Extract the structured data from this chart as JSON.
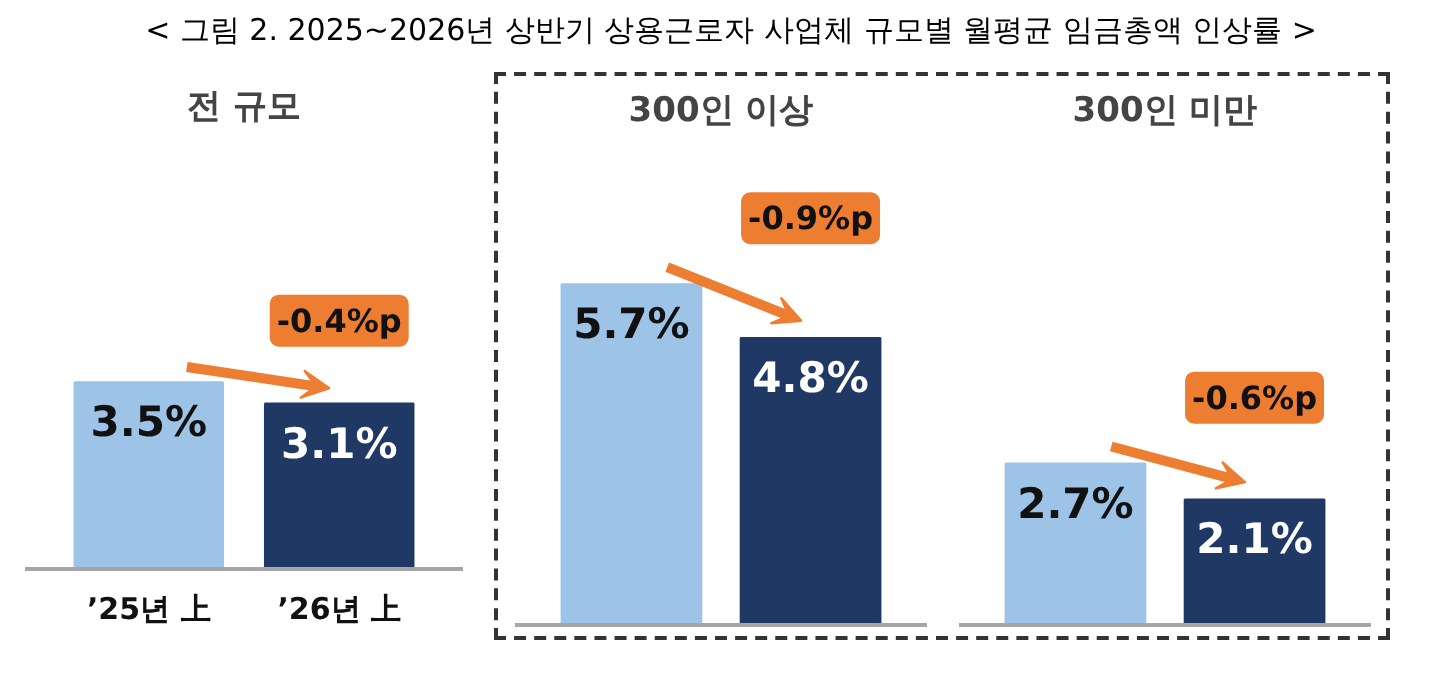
{
  "chart_data": [
    {
      "type": "bar",
      "title": "전 규모",
      "categories": [
        "’25년 上",
        "’26년 上"
      ],
      "values": [
        3.5,
        3.1
      ],
      "value_labels": [
        "3.5%",
        "3.1%"
      ],
      "colors": [
        "#9dc3e6",
        "#1f3864"
      ],
      "tick_labels": "x",
      "annotations": [
        "< 그림 2. 2025~2026년 상반기 상용근로자 사업체 규모별 월평균 임금총액 인상률 >",
        "-0.4%p"
      ]
    },
    {
      "type": "bar",
      "title": "300인 이상",
      "categories": [
        null,
        null
      ],
      "values": [
        5.7,
        4.8
      ],
      "value_labels": [
        "5.7%",
        "4.8%"
      ],
      "colors": [
        "#9dc3e6",
        "#1f3864"
      ],
      "tick_labels": "x",
      "annotations": [
        "-0.9%p"
      ]
    },
    {
      "type": "bar",
      "title": "300인 미만",
      "categories": [
        null,
        null
      ],
      "values": [
        2.7,
        2.1
      ],
      "value_labels": [
        "2.7%",
        "2.1%"
      ],
      "colors": [
        "#9dc3e6",
        "#1f3864"
      ],
      "tick_labels": "x",
      "annotations": [
        "-0.6%p"
      ]
    }
  ]
}
